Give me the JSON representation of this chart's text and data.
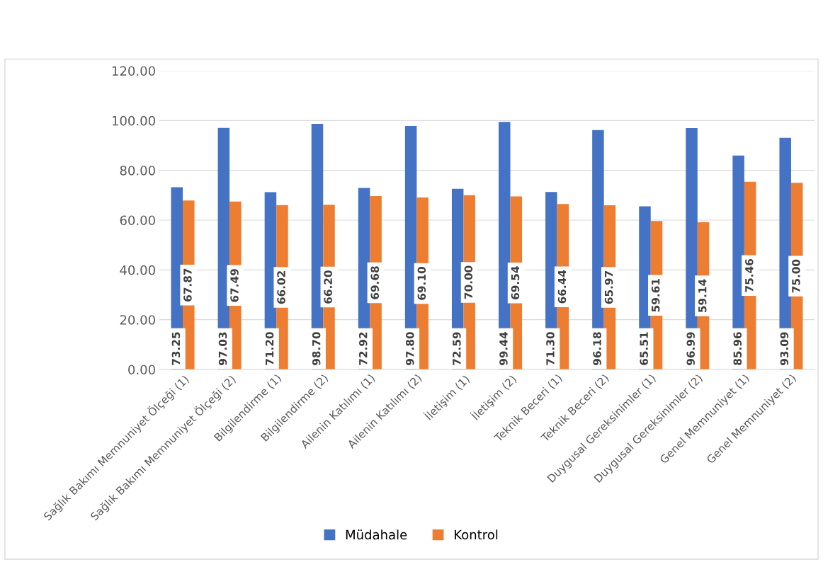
{
  "chart_data": {
    "type": "bar",
    "categories": [
      "Sağlık Bakımı Memnuniyet Ölçeği (1)",
      "Sağlık Bakımı Memnuniyet Ölçeği (2)",
      "Bilgilendirme (1)",
      "Bilgilendirme (2)",
      "Ailenin Katılımı (1)",
      "Ailenin Katılımı (2)",
      "İletişim (1)",
      "İletişim (2)",
      "Teknik Beceri (1)",
      "Teknik Beceri (2)",
      "Duygusal Gereksinimler (1)",
      "Duygusal Gereksinimler (2)",
      "Genel Memnuniyet (1)",
      "Genel Memnuniyet (2)"
    ],
    "series": [
      {
        "name": "Müdahale",
        "color": "#4472c4",
        "values": [
          73.25,
          97.03,
          71.2,
          98.7,
          72.92,
          97.8,
          72.59,
          99.44,
          71.3,
          96.18,
          65.51,
          96.99,
          85.96,
          93.09
        ],
        "value_labels": [
          "73.25",
          "97.03",
          "71.20",
          "98.70",
          "72.92",
          "97.80",
          "72.59",
          "99.44",
          "71.30",
          "96.18",
          "65.51",
          "96.99",
          "85.96",
          "93.09"
        ]
      },
      {
        "name": "Kontrol",
        "color": "#ed7d31",
        "values": [
          67.87,
          67.49,
          66.02,
          66.2,
          69.68,
          69.1,
          70.0,
          69.54,
          66.44,
          65.97,
          59.61,
          59.14,
          75.46,
          75.0
        ],
        "value_labels": [
          "67.87",
          "67.49",
          "66.02",
          "66.20",
          "69.68",
          "69.10",
          "70.00",
          "69.54",
          "66.44",
          "65.97",
          "59.61",
          "59.14",
          "75.46",
          "75.00"
        ]
      }
    ],
    "ylim": [
      0,
      120
    ],
    "yticks": [
      {
        "value": 0,
        "label": "0.00"
      },
      {
        "value": 20,
        "label": "20.00"
      },
      {
        "value": 40,
        "label": "40.00"
      },
      {
        "value": 60,
        "label": "60.00"
      },
      {
        "value": 80,
        "label": "80.00"
      },
      {
        "value": 100,
        "label": "100.00"
      },
      {
        "value": 120,
        "label": "120.00"
      }
    ],
    "grid": "y",
    "legend": "bottom"
  }
}
